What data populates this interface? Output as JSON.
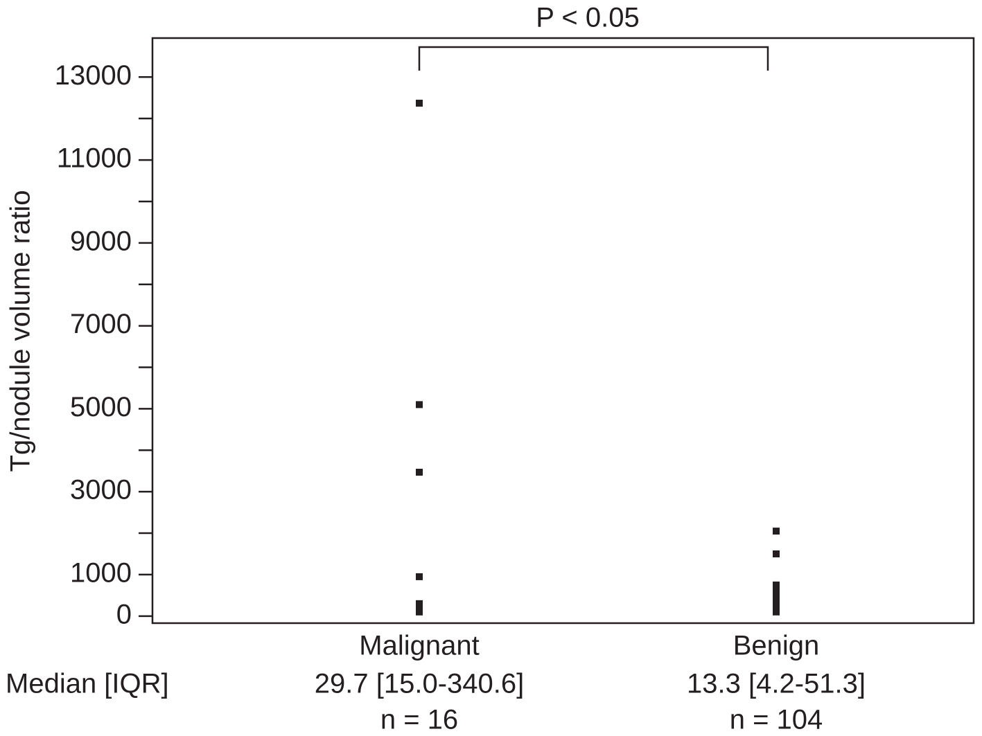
{
  "chart_data": {
    "type": "strip",
    "title": "P < 0.05",
    "y_label": "Tg/nodule volume ratio",
    "categories": [
      "Malignant",
      "Benign"
    ],
    "series": [
      {
        "name": "Malignant",
        "color": "#231f20",
        "values": [
          12370,
          5100,
          3470,
          950,
          300,
          250,
          200,
          150,
          100
        ]
      },
      {
        "name": "Benign",
        "color": "#231f20",
        "values": [
          2050,
          1500,
          750,
          650,
          550,
          450,
          350,
          250,
          150,
          100
        ]
      }
    ],
    "stats_label": "Median [IQR]",
    "medians": [
      "29.7 [15.0-340.6]",
      "13.3 [4.2-51.3]"
    ],
    "counts": [
      "n = 16",
      "n = 104"
    ],
    "ylim": [
      -170,
      13940
    ],
    "yticks": [
      0,
      1000,
      3000,
      5000,
      7000,
      9000,
      11000,
      13000
    ],
    "minor_yticks": [
      2000,
      4000,
      6000,
      8000,
      10000,
      12000
    ],
    "grid": false
  }
}
